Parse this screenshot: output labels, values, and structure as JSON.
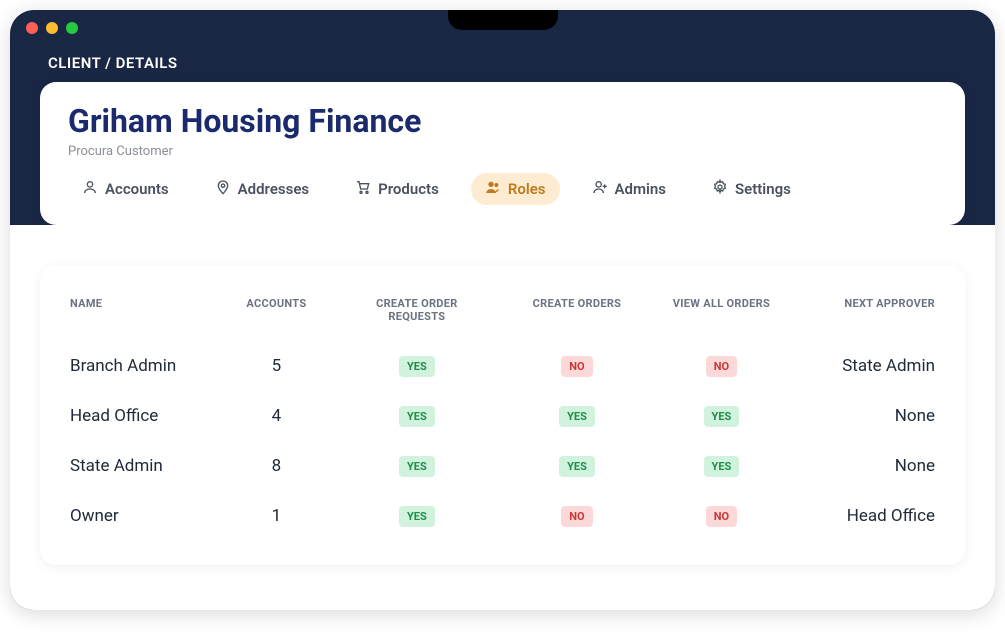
{
  "breadcrumb": "CLIENT / DETAILS",
  "client": {
    "name": "Griham Housing Finance",
    "subtitle": "Procura Customer"
  },
  "tabs": [
    {
      "label": "Accounts",
      "active": false
    },
    {
      "label": "Addresses",
      "active": false
    },
    {
      "label": "Products",
      "active": false
    },
    {
      "label": "Roles",
      "active": true
    },
    {
      "label": "Admins",
      "active": false
    },
    {
      "label": "Settings",
      "active": false
    }
  ],
  "table": {
    "columns": [
      "NAME",
      "ACCOUNTS",
      "CREATE ORDER REQUESTS",
      "CREATE ORDERS",
      "VIEW ALL ORDERS",
      "NEXT APPROVER"
    ],
    "rows": [
      {
        "name": "Branch Admin",
        "accounts": 5,
        "create_order_requests": true,
        "create_orders": false,
        "view_all_orders": false,
        "next_approver": "State Admin"
      },
      {
        "name": "Head Office",
        "accounts": 4,
        "create_order_requests": true,
        "create_orders": true,
        "view_all_orders": true,
        "next_approver": "None"
      },
      {
        "name": "State Admin",
        "accounts": 8,
        "create_order_requests": true,
        "create_orders": true,
        "view_all_orders": true,
        "next_approver": "None"
      },
      {
        "name": "Owner",
        "accounts": 1,
        "create_order_requests": true,
        "create_orders": false,
        "view_all_orders": false,
        "next_approver": "Head Office"
      }
    ]
  },
  "badges": {
    "yes": "YES",
    "no": "NO"
  },
  "colors": {
    "header_bg": "#1a2744",
    "title_color": "#1a2a6c",
    "active_tab_bg": "#fdecd2",
    "active_tab_color": "#c07a1e",
    "yes_bg": "#d1f2dd",
    "yes_color": "#1e8e4a",
    "no_bg": "#fdd8d8",
    "no_color": "#c93838"
  }
}
